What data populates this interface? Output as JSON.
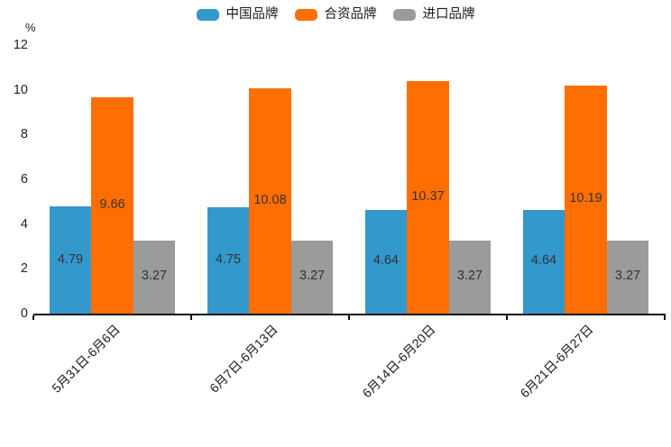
{
  "chart_data": {
    "type": "bar",
    "title": "",
    "ylabel": "%",
    "xlabel": "",
    "ylim": [
      0,
      12
    ],
    "yticks": [
      0,
      2,
      4,
      6,
      8,
      10,
      12
    ],
    "grid": false,
    "legend_position": "top-center",
    "value_labels": "inside-center",
    "categories": [
      "5月31日-6月6日",
      "6月7日-6月13日",
      "6月14日-6月20日",
      "6月21日-6月27日"
    ],
    "series": [
      {
        "name": "中国品牌",
        "color": "#3398cb",
        "values": [
          4.79,
          4.75,
          4.64,
          4.64
        ]
      },
      {
        "name": "合资品牌",
        "color": "#ff6e00",
        "values": [
          9.66,
          10.08,
          10.37,
          10.19
        ]
      },
      {
        "name": "进口品牌",
        "color": "#9b9b9b",
        "values": [
          3.27,
          3.27,
          3.27,
          3.27
        ]
      }
    ]
  },
  "colors": {
    "axis": "#111111",
    "tick_text": "#222222",
    "value_label_text": "#333333",
    "background": "#ffffff"
  }
}
